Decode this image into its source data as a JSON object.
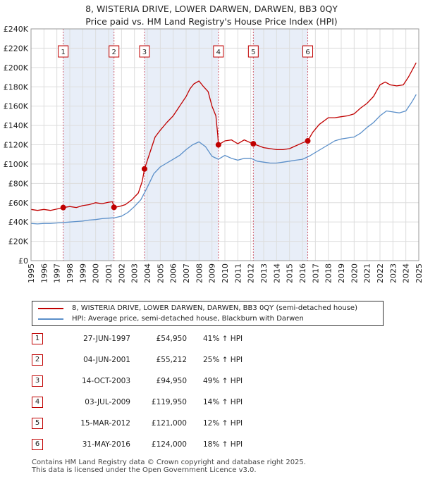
{
  "title_line1": "8, WISTERIA DRIVE, LOWER DARWEN, DARWEN, BB3 0QY",
  "title_line2": "Price paid vs. HM Land Registry's House Price Index (HPI)",
  "colors": {
    "property": "#c00000",
    "hpi": "#5b8fc9",
    "shade": "#e8eef8",
    "marker_line": "#d06070"
  },
  "legend": {
    "property": "8, WISTERIA DRIVE, LOWER DARWEN, DARWEN, BB3 0QY (semi-detached house)",
    "hpi": "HPI: Average price, semi-detached house, Blackburn with Darwen"
  },
  "sales": [
    {
      "num": "1",
      "date": "27-JUN-1997",
      "price": "£54,950",
      "hpi": "41% ↑ HPI"
    },
    {
      "num": "2",
      "date": "04-JUN-2001",
      "price": "£55,212",
      "hpi": "25% ↑ HPI"
    },
    {
      "num": "3",
      "date": "14-OCT-2003",
      "price": "£94,950",
      "hpi": "49% ↑ HPI"
    },
    {
      "num": "4",
      "date": "03-JUL-2009",
      "price": "£119,950",
      "hpi": "14% ↑ HPI"
    },
    {
      "num": "5",
      "date": "15-MAR-2012",
      "price": "£121,000",
      "hpi": "12% ↑ HPI"
    },
    {
      "num": "6",
      "date": "31-MAY-2016",
      "price": "£124,000",
      "hpi": "18% ↑ HPI"
    }
  ],
  "footer_line1": "Contains HM Land Registry data © Crown copyright and database right 2025.",
  "footer_line2": "This data is licensed under the Open Government Licence v3.0.",
  "chart_data": {
    "type": "line",
    "title": "8, WISTERIA DRIVE, LOWER DARWEN, DARWEN, BB3 0QY — Price paid vs. HM Land Registry's House Price Index (HPI)",
    "xlabel": "",
    "ylabel": "",
    "xlim": [
      1995,
      2025
    ],
    "ylim": [
      0,
      240000
    ],
    "x_ticks": [
      1995,
      1996,
      1997,
      1998,
      1999,
      2000,
      2001,
      2002,
      2003,
      2004,
      2005,
      2006,
      2007,
      2008,
      2009,
      2010,
      2011,
      2012,
      2013,
      2014,
      2015,
      2016,
      2017,
      2018,
      2019,
      2020,
      2021,
      2022,
      2023,
      2024,
      2025
    ],
    "y_ticks": [
      0,
      20000,
      40000,
      60000,
      80000,
      100000,
      120000,
      140000,
      160000,
      180000,
      200000,
      220000,
      240000
    ],
    "y_tick_labels": [
      "£0",
      "£20K",
      "£40K",
      "£60K",
      "£80K",
      "£100K",
      "£120K",
      "£140K",
      "£160K",
      "£180K",
      "£200K",
      "£220K",
      "£240K"
    ],
    "grid": true,
    "shaded_ranges": [
      [
        1997.49,
        2001.42
      ],
      [
        2003.78,
        2009.5
      ],
      [
        2012.2,
        2016.41
      ]
    ],
    "sale_markers": [
      {
        "label": "1",
        "x": 1997.49,
        "y": 54950
      },
      {
        "label": "2",
        "x": 2001.42,
        "y": 55212
      },
      {
        "label": "3",
        "x": 2003.78,
        "y": 94950
      },
      {
        "label": "4",
        "x": 2009.5,
        "y": 119950
      },
      {
        "label": "5",
        "x": 2012.2,
        "y": 121000
      },
      {
        "label": "6",
        "x": 2016.41,
        "y": 124000
      }
    ],
    "series": [
      {
        "name": "8, WISTERIA DRIVE, LOWER DARWEN, DARWEN, BB3 0QY (semi-detached house)",
        "x": [
          1995,
          1995.5,
          1996,
          1996.5,
          1997,
          1997.49,
          1998,
          1998.5,
          1999,
          1999.5,
          2000,
          2000.5,
          2001,
          2001.3,
          2001.42,
          2001.8,
          2002.3,
          2002.8,
          2003.3,
          2003.6,
          2003.78,
          2004.2,
          2004.6,
          2005,
          2005.5,
          2006,
          2006.5,
          2007,
          2007.3,
          2007.6,
          2008,
          2008.3,
          2008.7,
          2009,
          2009.3,
          2009.45,
          2009.5,
          2010,
          2010.5,
          2011,
          2011.5,
          2012,
          2012.2,
          2012.6,
          2013,
          2013.5,
          2014,
          2014.5,
          2015,
          2015.5,
          2016,
          2016.41,
          2016.8,
          2017.3,
          2018,
          2018.5,
          2019,
          2019.5,
          2020,
          2020.5,
          2021,
          2021.5,
          2022,
          2022.4,
          2022.8,
          2023.3,
          2023.8,
          2024.2,
          2024.6,
          2024.8
        ],
        "y": [
          53000,
          52000,
          53000,
          52000,
          53500,
          54950,
          56000,
          55000,
          57000,
          58000,
          60000,
          59000,
          60500,
          61000,
          55212,
          56000,
          58000,
          63000,
          70000,
          82000,
          94950,
          112000,
          128000,
          135000,
          143000,
          150000,
          160000,
          170000,
          178000,
          183000,
          186000,
          181000,
          175000,
          160000,
          150000,
          130000,
          119950,
          124000,
          125000,
          121000,
          125000,
          122000,
          121000,
          119000,
          117000,
          116000,
          115000,
          115000,
          116000,
          119000,
          122000,
          124000,
          133000,
          141000,
          148000,
          148000,
          149000,
          150000,
          152000,
          158000,
          163000,
          170000,
          182000,
          185000,
          182000,
          181000,
          182000,
          190000,
          200000,
          205000
        ]
      },
      {
        "name": "HPI: Average price, semi-detached house, Blackburn with Darwen",
        "x": [
          1995,
          1995.5,
          1996,
          1996.5,
          1997,
          1997.5,
          1998,
          1998.5,
          1999,
          1999.5,
          2000,
          2000.5,
          2001,
          2001.5,
          2002,
          2002.5,
          2003,
          2003.5,
          2004,
          2004.5,
          2005,
          2005.5,
          2006,
          2006.5,
          2007,
          2007.5,
          2008,
          2008.5,
          2009,
          2009.5,
          2010,
          2010.5,
          2011,
          2011.5,
          2012,
          2012.5,
          2013,
          2013.5,
          2014,
          2014.5,
          2015,
          2015.5,
          2016,
          2016.5,
          2017,
          2017.5,
          2018,
          2018.5,
          2019,
          2019.5,
          2020,
          2020.5,
          2021,
          2021.5,
          2022,
          2022.5,
          2023,
          2023.5,
          2024,
          2024.5,
          2024.8
        ],
        "y": [
          38500,
          38000,
          38500,
          38500,
          39000,
          39500,
          40000,
          40500,
          41000,
          42000,
          42500,
          43500,
          44000,
          44500,
          46000,
          50000,
          56000,
          63000,
          76000,
          90000,
          97000,
          101000,
          105000,
          109000,
          115000,
          120000,
          123000,
          118000,
          108000,
          105000,
          109000,
          106000,
          104000,
          106000,
          106000,
          103000,
          102000,
          101000,
          101000,
          102000,
          103000,
          104000,
          105000,
          108000,
          112000,
          116000,
          120000,
          124000,
          126000,
          127000,
          128000,
          132000,
          138000,
          143000,
          150000,
          155000,
          154000,
          153000,
          155000,
          165000,
          172000
        ]
      }
    ]
  }
}
